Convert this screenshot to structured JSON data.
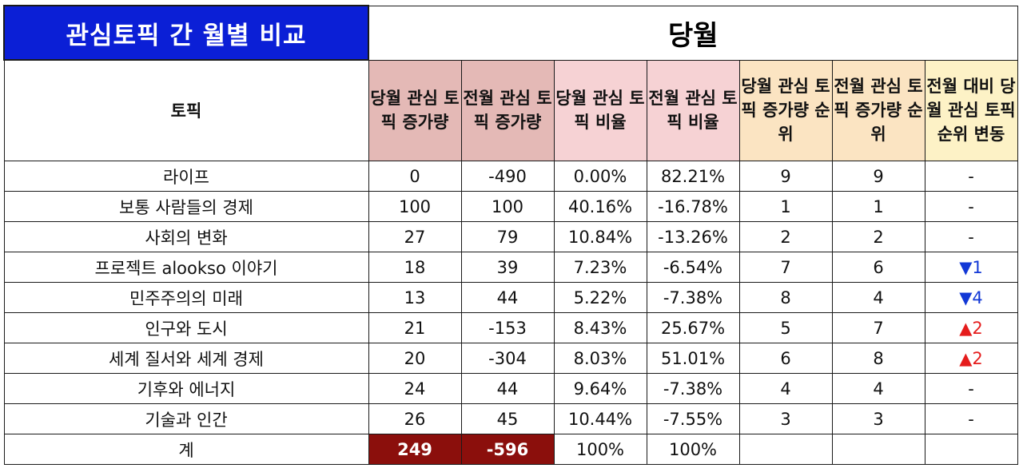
{
  "title": "관심토픽 간 월별 비교",
  "month_label": "당월",
  "headers": {
    "topic": "토픽",
    "cur_inc": "당월 관심 토픽 증가량",
    "prev_inc": "전월 관심 토픽 증가량",
    "cur_ratio": "당월 관심 토픽 비율",
    "prev_ratio": "전월 관심 토픽 비율",
    "cur_rank": "당월 관심 토픽 증가량 순위",
    "prev_rank": "전월 관심 토픽 증가량 순위",
    "rank_change": "전월 대비 당월 관심 토픽 순위 변동"
  },
  "rows": [
    {
      "topic": "라이프",
      "cur_inc": "0",
      "prev_inc": "-490",
      "cur_ratio": "0.00%",
      "prev_ratio": "82.21%",
      "cur_rank": "9",
      "prev_rank": "9",
      "change": "-",
      "dir": "flat"
    },
    {
      "topic": "보통 사람들의 경제",
      "cur_inc": "100",
      "prev_inc": "100",
      "cur_ratio": "40.16%",
      "prev_ratio": "-16.78%",
      "cur_rank": "1",
      "prev_rank": "1",
      "change": "-",
      "dir": "flat"
    },
    {
      "topic": "사회의 변화",
      "cur_inc": "27",
      "prev_inc": "79",
      "cur_ratio": "10.84%",
      "prev_ratio": "-13.26%",
      "cur_rank": "2",
      "prev_rank": "2",
      "change": "-",
      "dir": "flat"
    },
    {
      "topic": "프로젝트 alookso 이야기",
      "cur_inc": "18",
      "prev_inc": "39",
      "cur_ratio": "7.23%",
      "prev_ratio": "-6.54%",
      "cur_rank": "7",
      "prev_rank": "6",
      "change": "▼1",
      "dir": "down"
    },
    {
      "topic": "민주주의의 미래",
      "cur_inc": "13",
      "prev_inc": "44",
      "cur_ratio": "5.22%",
      "prev_ratio": "-7.38%",
      "cur_rank": "8",
      "prev_rank": "4",
      "change": "▼4",
      "dir": "down"
    },
    {
      "topic": "인구와 도시",
      "cur_inc": "21",
      "prev_inc": "-153",
      "cur_ratio": "8.43%",
      "prev_ratio": "25.67%",
      "cur_rank": "5",
      "prev_rank": "7",
      "change": "▲2",
      "dir": "up"
    },
    {
      "topic": "세계 질서와 세계 경제",
      "cur_inc": "20",
      "prev_inc": "-304",
      "cur_ratio": "8.03%",
      "prev_ratio": "51.01%",
      "cur_rank": "6",
      "prev_rank": "8",
      "change": "▲2",
      "dir": "up"
    },
    {
      "topic": "기후와 에너지",
      "cur_inc": "24",
      "prev_inc": "44",
      "cur_ratio": "9.64%",
      "prev_ratio": "-7.38%",
      "cur_rank": "4",
      "prev_rank": "4",
      "change": "-",
      "dir": "flat"
    },
    {
      "topic": "기술과 인간",
      "cur_inc": "26",
      "prev_inc": "45",
      "cur_ratio": "10.44%",
      "prev_ratio": "-7.55%",
      "cur_rank": "3",
      "prev_rank": "3",
      "change": "-",
      "dir": "flat"
    }
  ],
  "total": {
    "label": "계",
    "cur_inc": "249",
    "prev_inc": "-596",
    "cur_ratio": "100%",
    "prev_ratio": "100%"
  },
  "colors": {
    "title_bg": "#0b1fd6",
    "increase_header": "#e4b9b6",
    "ratio_header": "#f6d2d4",
    "rank_header": "#fbe4c2",
    "change_header": "#fdf2c6",
    "total_highlight": "#8b0f0c",
    "rank_up": "#e51c1c",
    "rank_down": "#1238d6"
  }
}
